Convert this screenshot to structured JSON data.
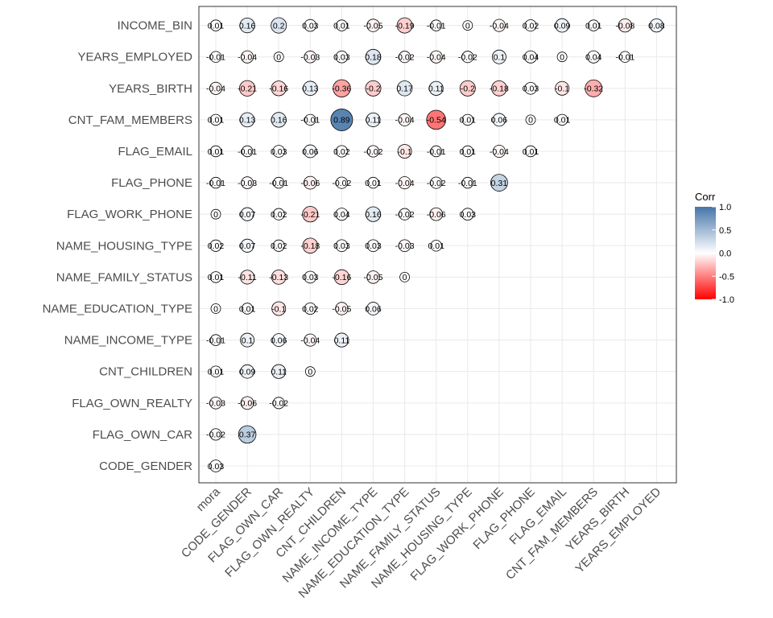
{
  "chart_data": {
    "type": "heatmap",
    "subtype": "correlation-circles",
    "x_categories": [
      "mora",
      "CODE_GENDER",
      "FLAG_OWN_CAR",
      "FLAG_OWN_REALTY",
      "CNT_CHILDREN",
      "NAME_INCOME_TYPE",
      "NAME_EDUCATION_TYPE",
      "NAME_FAMILY_STATUS",
      "NAME_HOUSING_TYPE",
      "FLAG_WORK_PHONE",
      "FLAG_PHONE",
      "FLAG_EMAIL",
      "CNT_FAM_MEMBERS",
      "YEARS_BIRTH",
      "YEARS_EMPLOYED"
    ],
    "y_categories": [
      "CODE_GENDER",
      "FLAG_OWN_CAR",
      "FLAG_OWN_REALTY",
      "CNT_CHILDREN",
      "NAME_INCOME_TYPE",
      "NAME_EDUCATION_TYPE",
      "NAME_FAMILY_STATUS",
      "NAME_HOUSING_TYPE",
      "FLAG_WORK_PHONE",
      "FLAG_PHONE",
      "FLAG_EMAIL",
      "CNT_FAM_MEMBERS",
      "YEARS_BIRTH",
      "YEARS_EMPLOYED",
      "INCOME_BIN"
    ],
    "values": [
      [
        0.03
      ],
      [
        -0.02,
        0.37
      ],
      [
        -0.03,
        -0.06,
        -0.02
      ],
      [
        0.01,
        0.09,
        0.11,
        0
      ],
      [
        -0.01,
        0.1,
        0.06,
        -0.04,
        0.11
      ],
      [
        0,
        0.01,
        -0.1,
        0.02,
        -0.05,
        0.06
      ],
      [
        0.01,
        -0.11,
        -0.13,
        0.03,
        -0.16,
        -0.05,
        0
      ],
      [
        0.02,
        0.07,
        0.02,
        -0.18,
        0.03,
        0.03,
        -0.03,
        0.01
      ],
      [
        0,
        0.07,
        0.02,
        -0.21,
        0.04,
        0.16,
        -0.02,
        -0.06,
        0.03
      ],
      [
        -0.01,
        -0.03,
        -0.01,
        -0.06,
        -0.02,
        0.01,
        -0.04,
        -0.02,
        -0.01,
        0.31
      ],
      [
        0.01,
        -0.01,
        0.03,
        0.06,
        0.02,
        -0.02,
        -0.1,
        -0.01,
        0.01,
        -0.04,
        0.01
      ],
      [
        0.01,
        0.13,
        0.16,
        -0.01,
        0.89,
        0.11,
        -0.04,
        -0.54,
        0.01,
        0.06,
        0,
        0.01
      ],
      [
        -0.04,
        -0.21,
        -0.16,
        0.13,
        -0.36,
        -0.2,
        0.17,
        0.11,
        -0.2,
        -0.18,
        0.03,
        -0.1,
        -0.32
      ],
      [
        -0.01,
        -0.04,
        0,
        -0.03,
        0.03,
        0.18,
        -0.02,
        -0.04,
        -0.02,
        0.1,
        0.04,
        0,
        0.04,
        -0.01
      ],
      [
        0.01,
        0.16,
        0.2,
        0.03,
        0.01,
        -0.05,
        -0.19,
        -0.01,
        0,
        -0.04,
        0.02,
        0.09,
        0.01,
        -0.08,
        0.08
      ]
    ],
    "color_scale": {
      "low": "#FF0000",
      "mid": "#FFFFFF",
      "high": "#4575A9",
      "limits": [
        -1,
        1
      ]
    },
    "legend": {
      "title": "Corr",
      "ticks": [
        "1.0",
        "0.5",
        "0.0",
        "-0.5",
        "-1.0"
      ],
      "tick_values": [
        1,
        0.5,
        0,
        -0.5,
        -1
      ],
      "position": "right"
    },
    "grid": true
  }
}
